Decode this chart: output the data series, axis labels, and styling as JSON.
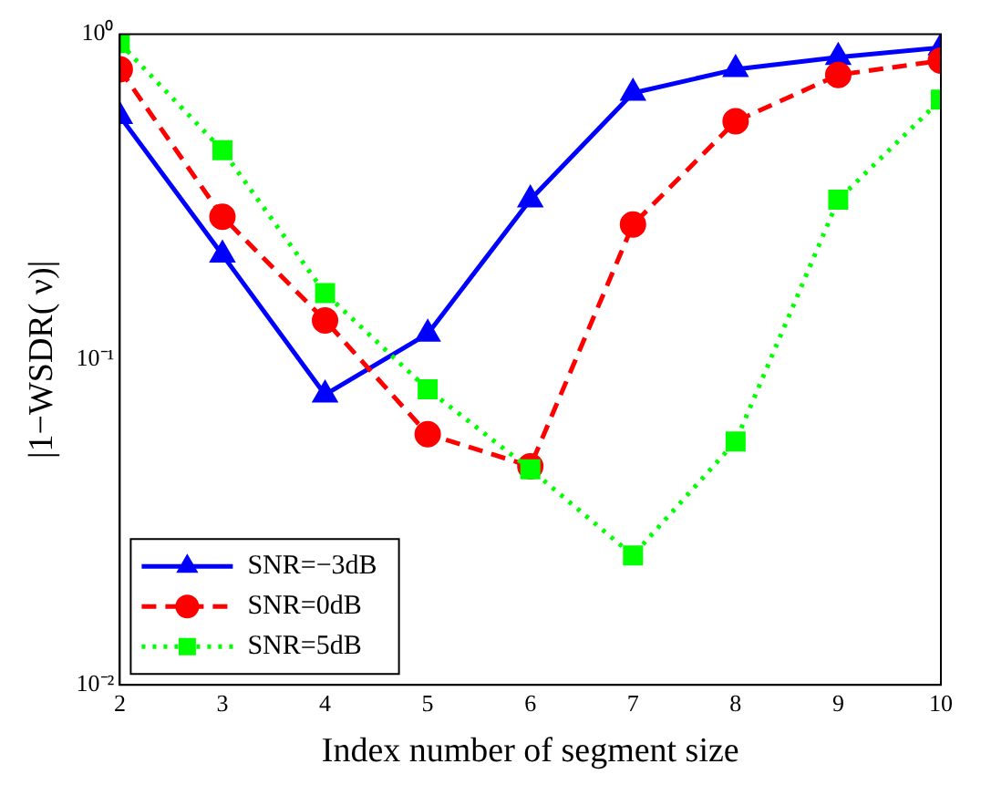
{
  "chart_data": {
    "type": "line",
    "xlabel": "Index number of segment size",
    "ylabel": "|1−WSDR( ν)|",
    "x": [
      2,
      3,
      4,
      5,
      6,
      7,
      8,
      9,
      10
    ],
    "xlim": [
      2,
      10
    ],
    "xticks": [
      2,
      3,
      4,
      5,
      6,
      7,
      8,
      9,
      10
    ],
    "log": "y",
    "ylim": [
      0.01,
      1
    ],
    "yticks": [
      {
        "value": 0.01,
        "label": "10⁻²"
      },
      {
        "value": 0.1,
        "label": "10⁻¹"
      },
      {
        "value": 1,
        "label": "10⁰"
      }
    ],
    "grid": false,
    "legend": "bottom left",
    "series": [
      {
        "name": "SNR=−3dB",
        "color": "#0000ff",
        "marker": "triangle",
        "line_style": "solid",
        "values": [
          0.56,
          0.21,
          0.078,
          0.12,
          0.31,
          0.66,
          0.78,
          0.85,
          0.91
        ]
      },
      {
        "name": "SNR=0dB",
        "color": "#ff0000",
        "marker": "circle",
        "line_style": "dashed",
        "values": [
          0.78,
          0.275,
          0.132,
          0.059,
          0.047,
          0.26,
          0.54,
          0.75,
          0.83
        ]
      },
      {
        "name": "SNR=5dB",
        "color": "#00ff00",
        "marker": "square",
        "line_style": "dotted",
        "values": [
          0.94,
          0.44,
          0.16,
          0.081,
          0.046,
          0.025,
          0.056,
          0.31,
          0.63
        ]
      }
    ]
  }
}
